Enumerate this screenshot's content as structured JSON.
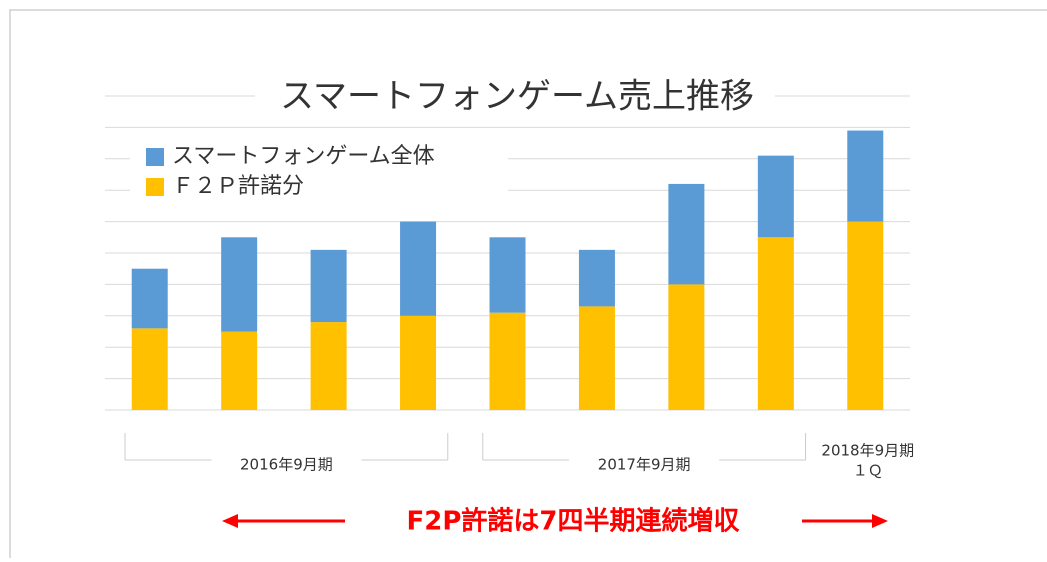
{
  "chart_data": {
    "type": "stacked_bar",
    "title": "スマートフォンゲーム売上推移",
    "categories": [
      null,
      null,
      null,
      null,
      null,
      null,
      null,
      null,
      null
    ],
    "groups": [
      {
        "lines": [
          "2016年9月期"
        ],
        "count": 4
      },
      {
        "lines": [
          "2017年9月期"
        ],
        "count": 4
      },
      {
        "lines": [
          "2018年9月期",
          "１Ｑ"
        ],
        "count": 1
      }
    ],
    "series": [
      {
        "name": "Ｆ２Ｐ許諾分",
        "color": "#ffc000",
        "values": [
          2.6,
          2.5,
          2.8,
          3.0,
          3.1,
          3.3,
          4.0,
          5.5,
          6.0
        ]
      },
      {
        "name": "スマートフォンゲーム全体",
        "color": "#5b9bd5",
        "values": [
          1.9,
          3.0,
          2.3,
          3.0,
          2.4,
          1.8,
          3.2,
          2.6,
          2.9
        ]
      }
    ],
    "ylim": [
      0,
      10
    ],
    "yticks": [
      0,
      1,
      2,
      3,
      4,
      5,
      6,
      7,
      8,
      9,
      10
    ],
    "grid": true,
    "annotation": "F2P許諾は7四半期連続増収"
  }
}
